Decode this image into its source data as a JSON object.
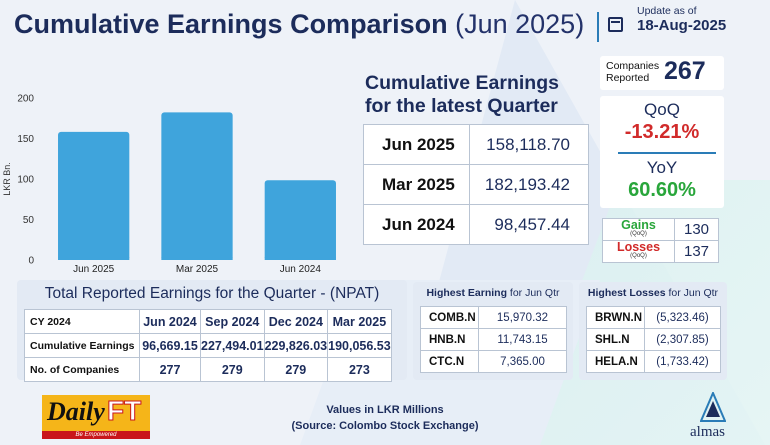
{
  "header": {
    "title_bold": "Cumulative Earnings Comparison",
    "title_light": "(Jun 2025)",
    "update_label": "Update as of",
    "update_date": "18-Aug-2025"
  },
  "chart_data": {
    "type": "bar",
    "categories": [
      "Jun 2025",
      "Mar 2025",
      "Jun 2024"
    ],
    "values": [
      158.12,
      182.19,
      98.46
    ],
    "title": "",
    "xlabel": "",
    "ylabel": "LKR Bn.",
    "ylim": [
      0,
      200
    ],
    "yticks": [
      0,
      50,
      100,
      150,
      200
    ],
    "bar_color": "#3fa4dc",
    "grid": false
  },
  "latest": {
    "title_line1": "Cumulative Earnings",
    "title_line2": "for the latest Quarter",
    "rows": [
      {
        "period": "Jun 2025",
        "value": "158,118.70"
      },
      {
        "period": "Mar 2025",
        "value": "182,193.42"
      },
      {
        "period": "Jun 2024",
        "value": "98,457.44"
      }
    ]
  },
  "companies": {
    "label_line1": "Companies",
    "label_line2": "Reported",
    "count": "267"
  },
  "change": {
    "qoq_label": "QoQ",
    "qoq_value": "-13.21%",
    "yoy_label": "YoY",
    "yoy_value": "60.60%"
  },
  "gains_losses": {
    "gains_label": "Gains",
    "gains_sub": "(QoQ)",
    "gains_value": "130",
    "losses_label": "Losses",
    "losses_sub": "(QoQ)",
    "losses_value": "137"
  },
  "npat": {
    "title": "Total Reported Earnings for the Quarter - (NPAT)",
    "header": [
      "CY 2024",
      "Jun 2024",
      "Sep 2024",
      "Dec 2024",
      "Mar 2025"
    ],
    "rows": [
      [
        "Cumulative Earnings",
        "96,669.15",
        "227,494.01",
        "229,826.03",
        "190,056.53"
      ],
      [
        "No. of Companies",
        "277",
        "279",
        "279",
        "273"
      ]
    ]
  },
  "highest_earning": {
    "title_bold": "Highest Earning",
    "title_rest": "for Jun Qtr",
    "rows": [
      {
        "ticker": "COMB.N",
        "value": "15,970.32"
      },
      {
        "ticker": "HNB.N",
        "value": "11,743.15"
      },
      {
        "ticker": "CTC.N",
        "value": "7,365.00"
      }
    ]
  },
  "highest_losses": {
    "title_bold": "Highest Losses",
    "title_rest": "for Jun Qtr",
    "rows": [
      {
        "ticker": "BRWN.N",
        "value": "(5,323.46)"
      },
      {
        "ticker": "SHL.N",
        "value": "(2,307.85)"
      },
      {
        "ticker": "HELA.N",
        "value": "(1,733.42)"
      }
    ]
  },
  "footer": {
    "line1": "Values in LKR Millions",
    "line2": "(Source: Colombo Stock Exchange)"
  },
  "logos": {
    "dailyft_daily": "Daily",
    "dailyft_ft": "FT",
    "dailyft_tagline": "Be Empowered",
    "almas": "almas"
  }
}
